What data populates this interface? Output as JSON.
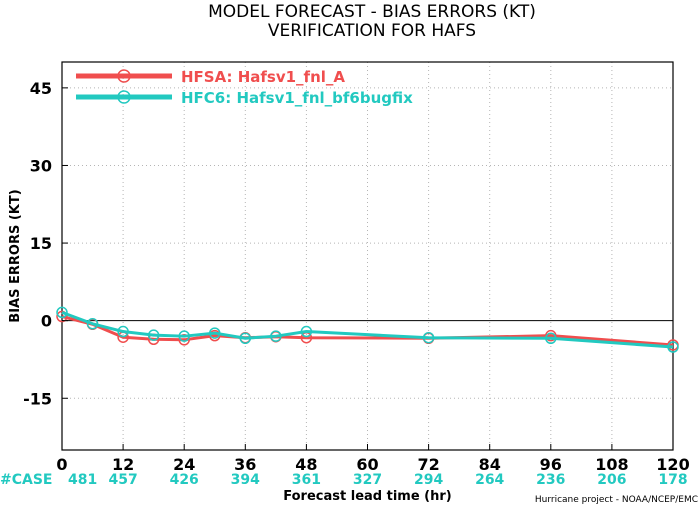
{
  "chart_data": {
    "type": "line",
    "title": "MODEL FORECAST - BIAS ERRORS (KT)",
    "subtitle": "VERIFICATION FOR HAFS",
    "xlabel": "Forecast lead time (hr)",
    "ylabel": "BIAS ERRORS (KT)",
    "xlim": [
      0,
      120
    ],
    "ylim": [
      -25,
      50
    ],
    "x_ticks": [
      0,
      12,
      24,
      36,
      48,
      60,
      72,
      84,
      96,
      108,
      120
    ],
    "y_ticks": [
      -15,
      0,
      15,
      30,
      45
    ],
    "grid": true,
    "legend_placement": "top-left",
    "series": [
      {
        "name": "HFSA: Hafsv1_fnl_A",
        "color": "#f04e4e",
        "x": [
          0,
          6,
          12,
          18,
          24,
          30,
          36,
          42,
          48,
          72,
          96,
          120
        ],
        "y": [
          0.8,
          -0.7,
          -3.2,
          -3.6,
          -3.7,
          -2.9,
          -3.3,
          -3.1,
          -3.3,
          -3.4,
          -2.9,
          -4.7
        ]
      },
      {
        "name": "HFC6: Hafsv1_fnl_bf6bugfix",
        "color": "#22c9c0",
        "x": [
          0,
          6,
          12,
          18,
          24,
          30,
          36,
          42,
          48,
          72,
          96,
          120
        ],
        "y": [
          1.6,
          -0.6,
          -2.1,
          -2.8,
          -3.0,
          -2.4,
          -3.4,
          -3.0,
          -2.1,
          -3.3,
          -3.4,
          -5.1
        ]
      }
    ],
    "case_label": "#CASE",
    "case_x": [
      0,
      12,
      24,
      36,
      48,
      60,
      72,
      84,
      96,
      108,
      120
    ],
    "case_counts": [
      "481",
      "457",
      "426",
      "394",
      "361",
      "327",
      "294",
      "264",
      "236",
      "206",
      "178"
    ],
    "case_color": "#22c9c0",
    "credit": "Hurricane project - NOAA/NCEP/EMC"
  }
}
